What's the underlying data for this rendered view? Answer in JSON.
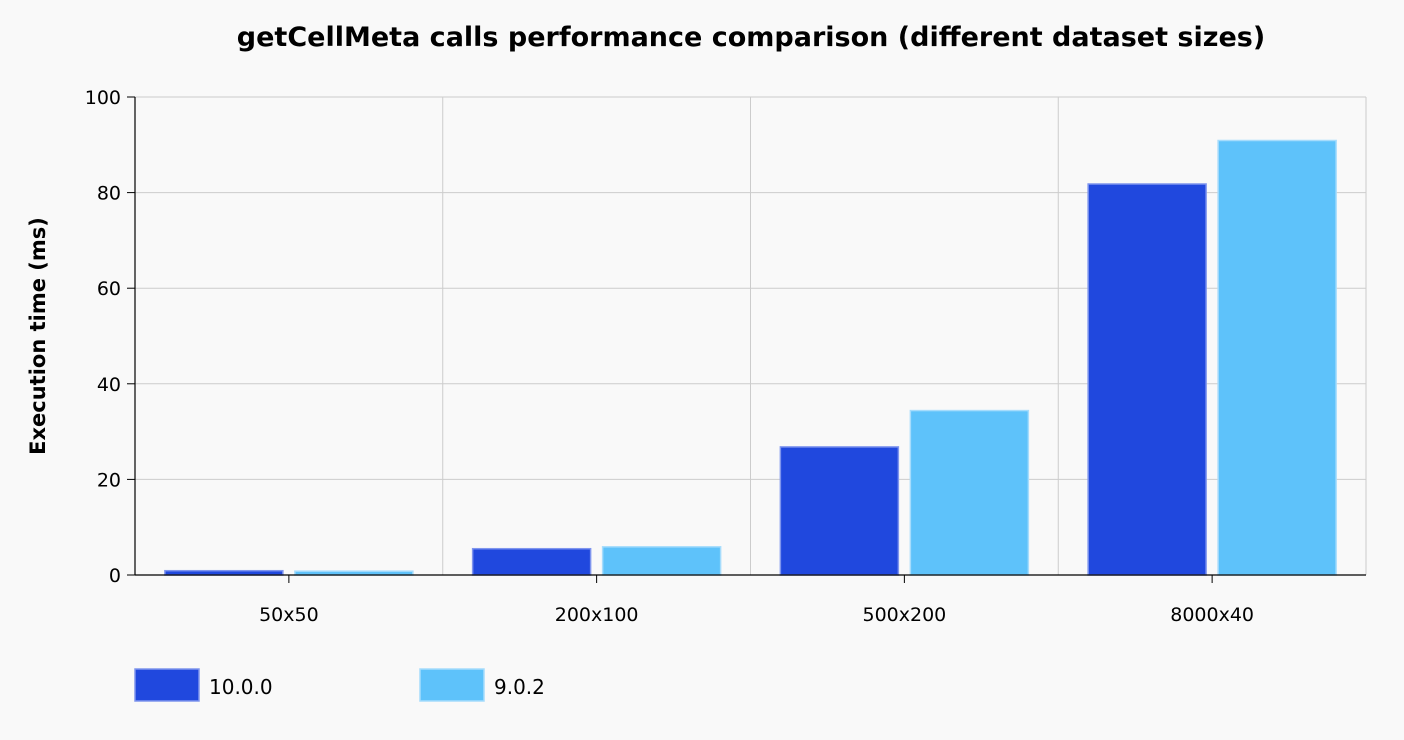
{
  "chart_data": {
    "type": "bar",
    "title": "getCellMeta calls performance comparison (different dataset sizes)",
    "xlabel": "",
    "ylabel": "Execution time (ms)",
    "categories": [
      "50x50",
      "200x100",
      "500x200",
      "8000x40"
    ],
    "series": [
      {
        "name": "10.0.0",
        "values": [
          0.9,
          5.5,
          26.8,
          81.8
        ]
      },
      {
        "name": "9.0.2",
        "values": [
          0.8,
          5.9,
          34.4,
          90.9
        ]
      }
    ],
    "ylim": [
      0,
      100
    ],
    "yticks": [
      0,
      20,
      40,
      60,
      80,
      100
    ],
    "grid": true,
    "legend_position": "bottom-left",
    "colors": {
      "series": [
        "#2048de",
        "#5ec2fa"
      ],
      "series_stroke": [
        "#7f95ee",
        "#a6dcfc"
      ],
      "grid": "#cccccc",
      "axis": "#000000",
      "background": "#f9f9f9"
    }
  }
}
